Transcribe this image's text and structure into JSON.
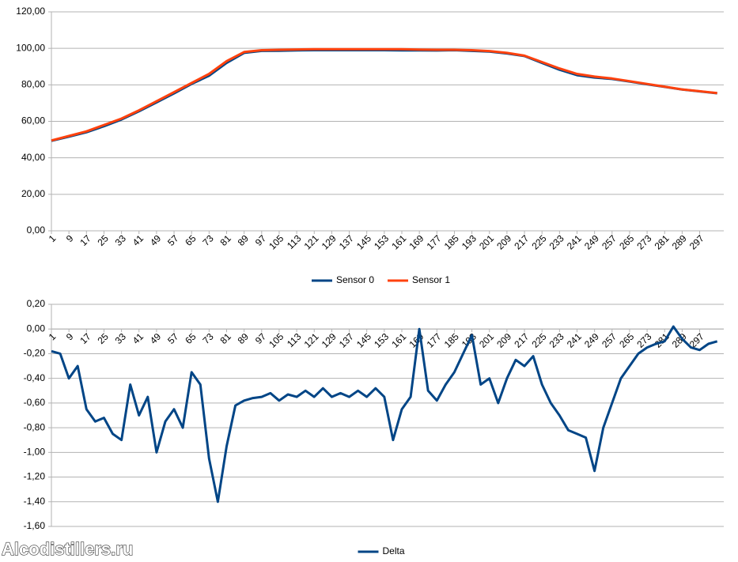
{
  "chart_data": [
    {
      "type": "line",
      "x": [
        1,
        9,
        17,
        25,
        33,
        41,
        49,
        57,
        65,
        73,
        81,
        89,
        97,
        105,
        113,
        121,
        129,
        137,
        145,
        153,
        161,
        169,
        177,
        185,
        193,
        201,
        209,
        217,
        225,
        233,
        241,
        249,
        257,
        265,
        273,
        281,
        289,
        297,
        305
      ],
      "series": [
        {
          "name": "Sensor 0",
          "color": "#004586",
          "values": [
            49.3,
            51.6,
            54,
            57.3,
            61,
            65.5,
            70.4,
            75.3,
            80.5,
            85,
            92,
            97.5,
            98.6,
            98.7,
            98.9,
            99,
            99,
            99,
            99,
            99,
            98.9,
            98.9,
            98.8,
            99,
            98.6,
            98.2,
            97.2,
            95.8,
            92,
            88.3,
            85.3,
            84,
            83.2,
            81.8,
            80.3,
            78.9,
            77.4,
            76.4,
            75.4
          ]
        },
        {
          "name": "Sensor 1",
          "color": "#ff420e",
          "values": [
            49.5,
            52,
            54.5,
            58,
            61.5,
            66,
            71,
            76,
            81,
            86,
            93,
            98,
            99,
            99.2,
            99.4,
            99.5,
            99.5,
            99.5,
            99.5,
            99.5,
            99.5,
            99.3,
            99.2,
            99.2,
            99,
            98.5,
            97.5,
            96,
            92.5,
            89,
            86,
            84.5,
            83.5,
            82,
            80.5,
            79,
            77.5,
            76.5,
            75.5
          ]
        }
      ],
      "xlim": [
        1,
        308
      ],
      "xticks": [
        1,
        9,
        17,
        25,
        33,
        41,
        49,
        57,
        65,
        73,
        81,
        89,
        97,
        105,
        113,
        121,
        129,
        137,
        145,
        153,
        161,
        169,
        177,
        185,
        193,
        201,
        209,
        217,
        225,
        233,
        241,
        249,
        257,
        265,
        273,
        281,
        289,
        297
      ],
      "ylim": [
        0,
        120
      ],
      "yticks": [
        {
          "value": 0,
          "label": "0,00"
        },
        {
          "value": 20,
          "label": "20,00"
        },
        {
          "value": 40,
          "label": "40,00"
        },
        {
          "value": 60,
          "label": "60,00"
        },
        {
          "value": 80,
          "label": "80,00"
        },
        {
          "value": 100,
          "label": "100,00"
        },
        {
          "value": 120,
          "label": "120,00"
        }
      ],
      "grid": true,
      "legend": "bottom"
    },
    {
      "type": "line",
      "x": [
        1,
        5,
        9,
        13,
        17,
        21,
        25,
        29,
        33,
        37,
        41,
        45,
        49,
        53,
        57,
        61,
        65,
        69,
        73,
        77,
        81,
        85,
        89,
        93,
        97,
        101,
        105,
        109,
        113,
        117,
        121,
        125,
        129,
        133,
        137,
        141,
        145,
        149,
        153,
        157,
        161,
        165,
        169,
        173,
        177,
        181,
        185,
        189,
        193,
        197,
        201,
        205,
        209,
        213,
        217,
        221,
        225,
        229,
        233,
        237,
        241,
        245,
        249,
        253,
        257,
        261,
        265,
        269,
        273,
        277,
        281,
        285,
        289,
        293,
        297,
        301,
        305
      ],
      "series": [
        {
          "name": "Delta",
          "color": "#004586",
          "values": [
            -0.18,
            -0.2,
            -0.4,
            -0.3,
            -0.65,
            -0.75,
            -0.72,
            -0.85,
            -0.9,
            -0.45,
            -0.7,
            -0.55,
            -1.0,
            -0.75,
            -0.65,
            -0.8,
            -0.35,
            -0.45,
            -1.05,
            -1.4,
            -0.95,
            -0.62,
            -0.58,
            -0.56,
            -0.55,
            -0.52,
            -0.58,
            -0.53,
            -0.55,
            -0.5,
            -0.55,
            -0.48,
            -0.55,
            -0.52,
            -0.55,
            -0.5,
            -0.55,
            -0.48,
            -0.55,
            -0.9,
            -0.65,
            -0.55,
            0,
            -0.5,
            -0.58,
            -0.45,
            -0.35,
            -0.2,
            -0.05,
            -0.45,
            -0.4,
            -0.6,
            -0.4,
            -0.25,
            -0.3,
            -0.22,
            -0.45,
            -0.6,
            -0.7,
            -0.82,
            -0.85,
            -0.88,
            -1.15,
            -0.8,
            -0.6,
            -0.4,
            -0.3,
            -0.2,
            -0.15,
            -0.12,
            -0.1,
            0.02,
            -0.08,
            -0.15,
            -0.17,
            -0.12,
            -0.1
          ]
        }
      ],
      "xlim": [
        1,
        308
      ],
      "xticks": [
        1,
        9,
        17,
        25,
        33,
        41,
        49,
        57,
        65,
        73,
        81,
        89,
        97,
        105,
        113,
        121,
        129,
        137,
        145,
        153,
        161,
        169,
        177,
        185,
        193,
        201,
        209,
        217,
        225,
        233,
        241,
        249,
        257,
        265,
        273,
        281,
        289,
        297
      ],
      "ylim": [
        -1.6,
        0.2
      ],
      "yticks": [
        {
          "value": 0.2,
          "label": "0,20"
        },
        {
          "value": 0,
          "label": "0,00"
        },
        {
          "value": -0.2,
          "label": "-0,20"
        },
        {
          "value": -0.4,
          "label": "-0,40"
        },
        {
          "value": -0.6,
          "label": "-0,60"
        },
        {
          "value": -0.8,
          "label": "-0,80"
        },
        {
          "value": -1.0,
          "label": "-1,00"
        },
        {
          "value": -1.2,
          "label": "-1,20"
        },
        {
          "value": -1.4,
          "label": "-1,40"
        },
        {
          "value": -1.6,
          "label": "-1,60"
        }
      ],
      "grid": true,
      "legend": "bottom"
    }
  ],
  "watermark": "Alcodistillers.ru"
}
